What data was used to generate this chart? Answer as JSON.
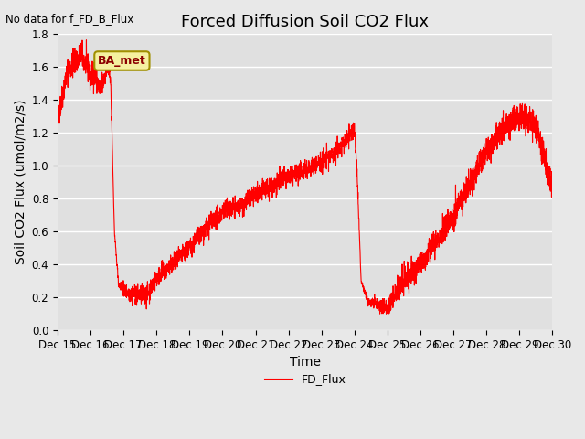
{
  "title": "Forced Diffusion Soil CO2 Flux",
  "xlabel": "Time",
  "ylabel": "Soil CO2 Flux (umol/m2/s)",
  "no_data_text": "No data for f_FD_B_Flux",
  "legend_label": "FD_Flux",
  "ba_met_label": "BA_met",
  "line_color": "red",
  "ylim": [
    0.0,
    1.8
  ],
  "yticks": [
    0.0,
    0.2,
    0.4,
    0.6,
    0.8,
    1.0,
    1.2,
    1.4,
    1.6,
    1.8
  ],
  "xtick_labels": [
    "Dec 15",
    "Dec 16",
    "Dec 17",
    "Dec 18",
    "Dec 19",
    "Dec 20",
    "Dec 21",
    "Dec 22",
    "Dec 23",
    "Dec 24",
    "Dec 25",
    "Dec 26",
    "Dec 27",
    "Dec 28",
    "Dec 29",
    "Dec 30"
  ],
  "bg_color": "#e8e8e8",
  "plot_bg_color": "#e0e0e0",
  "grid_color": "#ffffff",
  "title_fontsize": 13,
  "label_fontsize": 10,
  "tick_fontsize": 8.5,
  "seed": 42,
  "n_points": 3600
}
